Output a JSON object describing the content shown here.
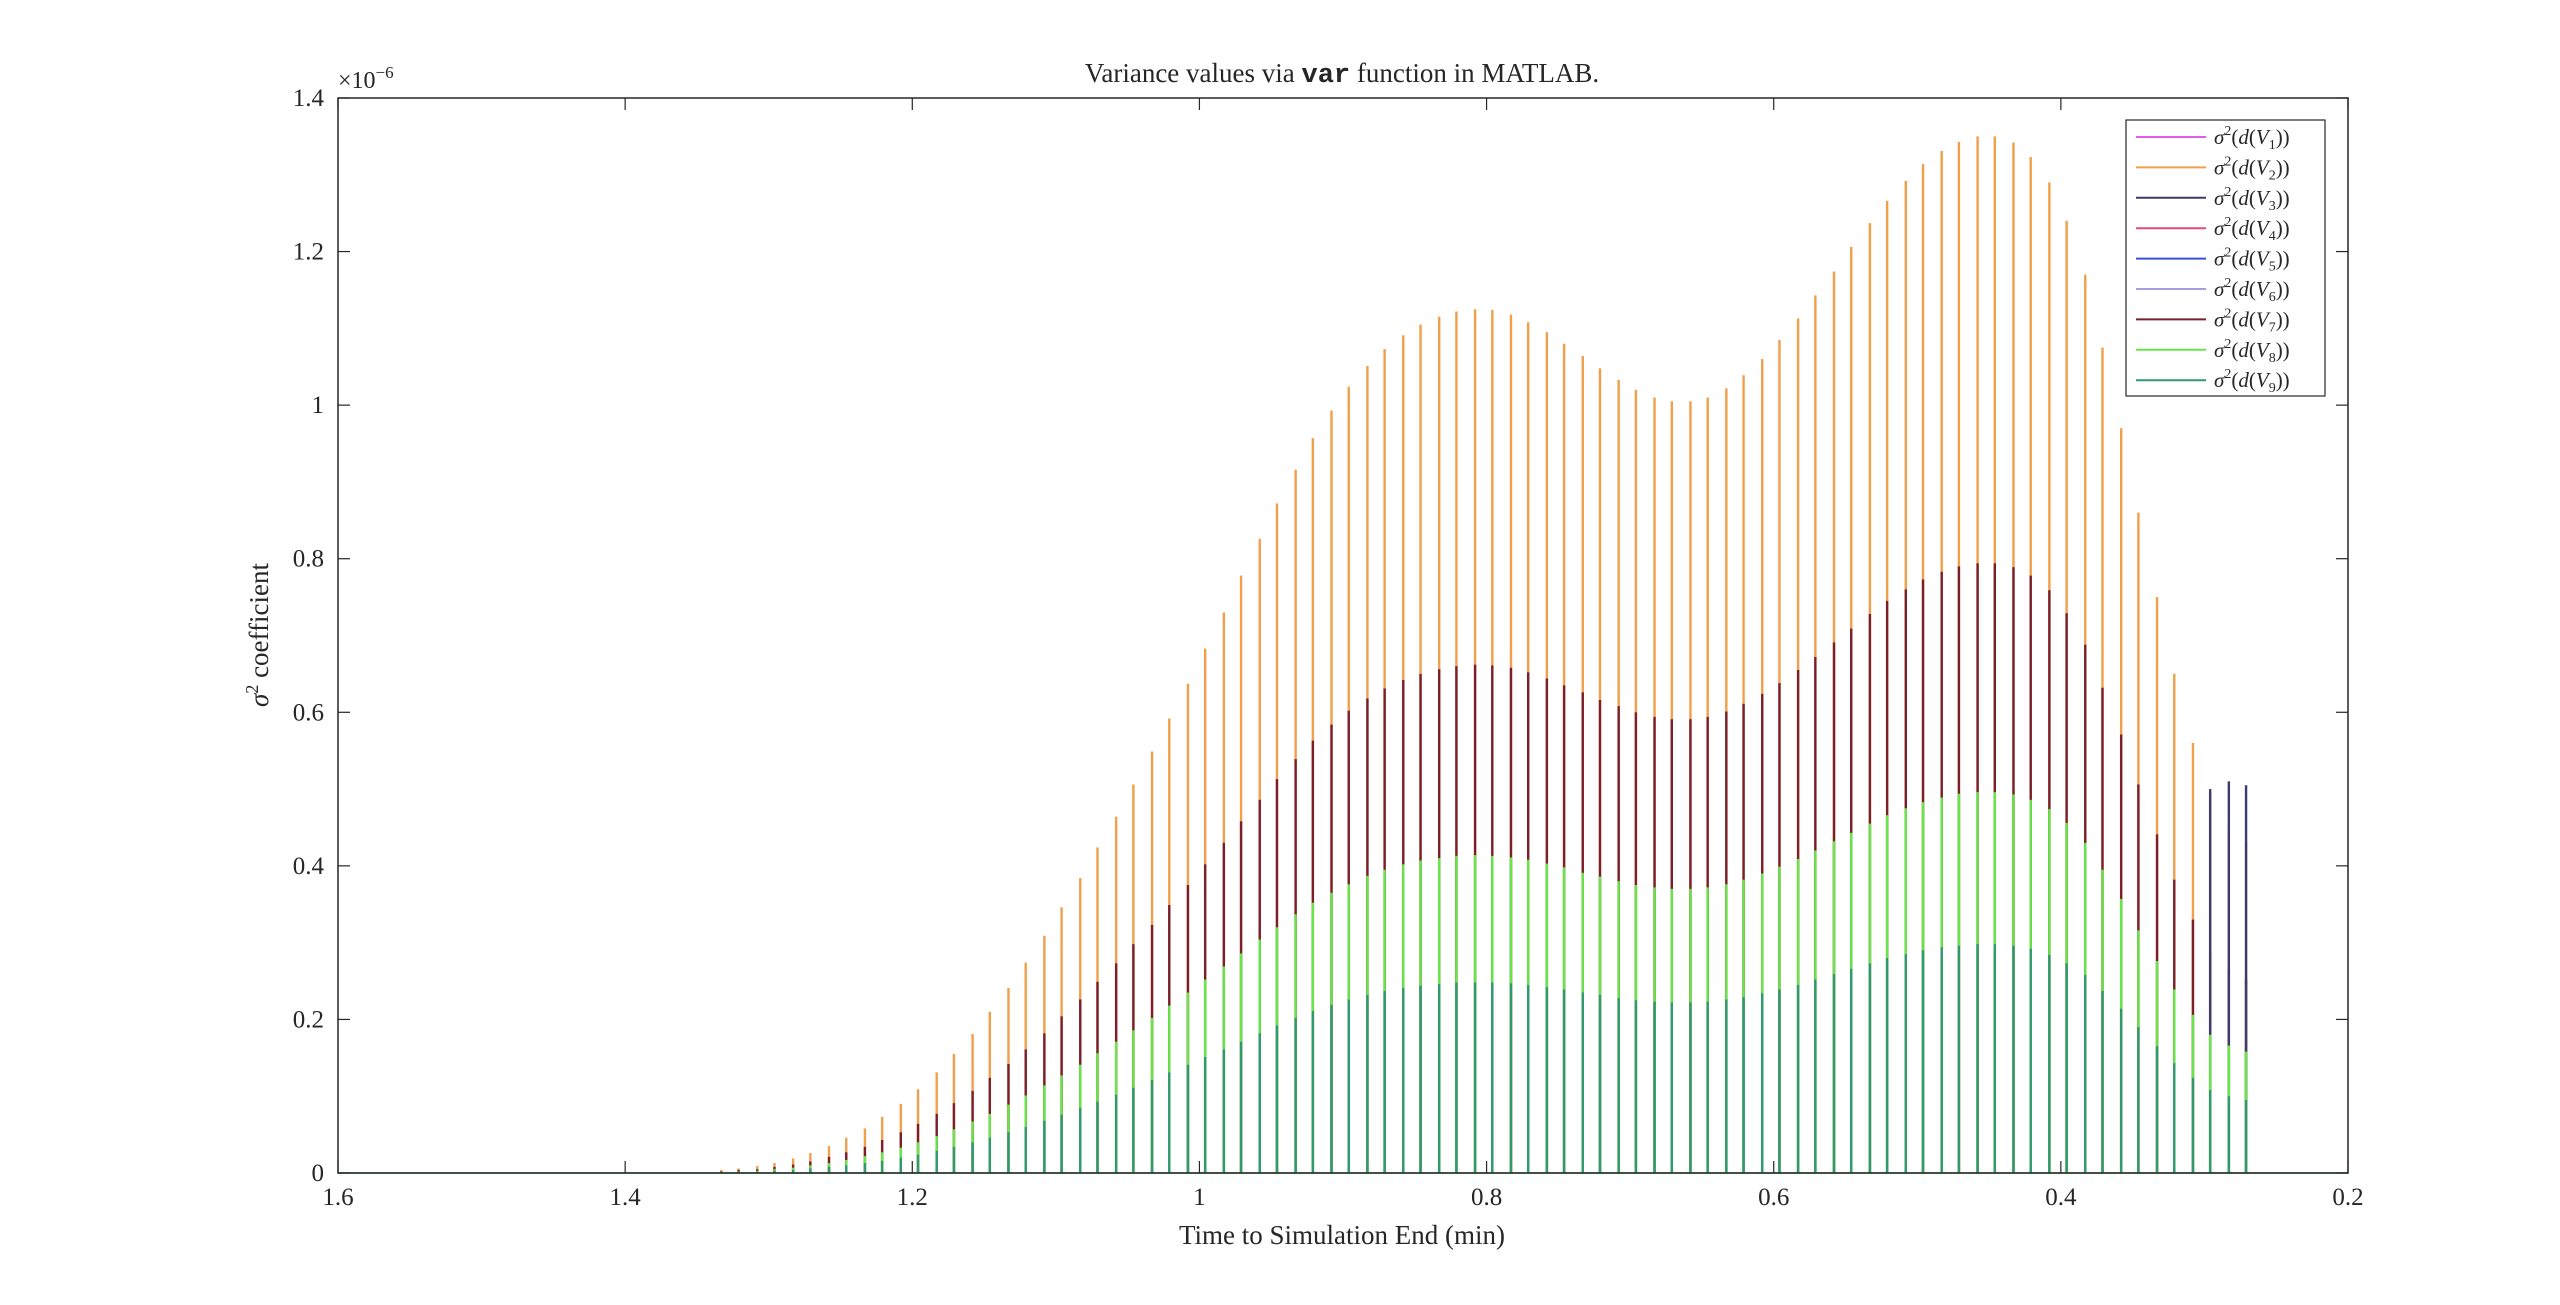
{
  "chart_data": {
    "type": "bar",
    "title": {
      "prefix": "Variance values via ",
      "code": "var",
      "suffix": " function in MATLAB."
    },
    "xlabel": "Time to Simulation End (min)",
    "ylabel": {
      "symbol": "σ",
      "superscript": "2",
      "text": " coefficient"
    },
    "y_exponent": {
      "base": "×10",
      "power": "−6"
    },
    "xlim": [
      1.6,
      0.2
    ],
    "x_reversed": true,
    "ylim": [
      0,
      1.4
    ],
    "xticks": [
      1.6,
      1.4,
      1.2,
      1,
      0.8,
      0.6,
      0.4,
      0.2
    ],
    "xtick_labels": [
      "1.6",
      "1.4",
      "1.2",
      "1",
      "0.8",
      "0.6",
      "0.4",
      "0.2"
    ],
    "yticks": [
      0,
      0.2,
      0.4,
      0.6,
      0.8,
      1,
      1.2,
      1.4
    ],
    "ytick_labels": [
      "0",
      "0.2",
      "0.4",
      "0.6",
      "0.8",
      "1",
      "1.2",
      "1.4"
    ],
    "grid": false,
    "legend_position": "top-right",
    "x": [
      1.333,
      1.321,
      1.308,
      1.296,
      1.283,
      1.271,
      1.258,
      1.246,
      1.233,
      1.221,
      1.208,
      1.196,
      1.183,
      1.171,
      1.158,
      1.146,
      1.133,
      1.121,
      1.108,
      1.096,
      1.083,
      1.071,
      1.058,
      1.046,
      1.033,
      1.021,
      1.008,
      0.996,
      0.983,
      0.971,
      0.958,
      0.946,
      0.933,
      0.921,
      0.908,
      0.896,
      0.883,
      0.871,
      0.858,
      0.846,
      0.833,
      0.821,
      0.808,
      0.796,
      0.783,
      0.771,
      0.758,
      0.746,
      0.733,
      0.721,
      0.708,
      0.696,
      0.683,
      0.671,
      0.658,
      0.646,
      0.633,
      0.621,
      0.608,
      0.596,
      0.583,
      0.571,
      0.558,
      0.546,
      0.533,
      0.521,
      0.508,
      0.496,
      0.483,
      0.471,
      0.458,
      0.446,
      0.433,
      0.421,
      0.408,
      0.396,
      0.383,
      0.371,
      0.358,
      0.346,
      0.333,
      0.321,
      0.308,
      0.296,
      0.283,
      0.271
    ],
    "series": [
      {
        "name": "σ²(d(V₁))",
        "legend_sub": "1",
        "color": "#e65ce6",
        "values": [
          0,
          0,
          0,
          0,
          0,
          0,
          0,
          0,
          0,
          0,
          0,
          0,
          0,
          0,
          0,
          0,
          0,
          0,
          0,
          0,
          0,
          0,
          0,
          0,
          0,
          0,
          0,
          0,
          0,
          0,
          0,
          0,
          0,
          0,
          0,
          0,
          0,
          0,
          0,
          0,
          0,
          0,
          0,
          0,
          0,
          0,
          0,
          0,
          0,
          0,
          0,
          0,
          0,
          0,
          0,
          0,
          0,
          0,
          0,
          0,
          0,
          0,
          0,
          0,
          0,
          0,
          0,
          0,
          0,
          0,
          0,
          0,
          0,
          0,
          0,
          0,
          0,
          0,
          0,
          0,
          0,
          0,
          0,
          0,
          0,
          0
        ]
      },
      {
        "name": "σ²(d(V₂))",
        "legend_sub": "2",
        "color": "#f0a04b",
        "values": [
          0.004,
          0.006,
          0.009,
          0.013,
          0.019,
          0.026,
          0.035,
          0.046,
          0.058,
          0.073,
          0.09,
          0.109,
          0.131,
          0.155,
          0.181,
          0.21,
          0.241,
          0.274,
          0.309,
          0.346,
          0.384,
          0.424,
          0.464,
          0.506,
          0.549,
          0.592,
          0.637,
          0.683,
          0.73,
          0.778,
          0.826,
          0.872,
          0.916,
          0.957,
          0.993,
          1.024,
          1.051,
          1.073,
          1.091,
          1.105,
          1.115,
          1.122,
          1.125,
          1.124,
          1.118,
          1.108,
          1.095,
          1.08,
          1.064,
          1.048,
          1.033,
          1.02,
          1.01,
          1.005,
          1.005,
          1.01,
          1.022,
          1.039,
          1.06,
          1.085,
          1.113,
          1.143,
          1.174,
          1.206,
          1.237,
          1.266,
          1.292,
          1.314,
          1.331,
          1.343,
          1.35,
          1.35,
          1.342,
          1.323,
          1.29,
          1.24,
          1.17,
          1.075,
          0.97,
          0.86,
          0.75,
          0.65,
          0.56,
          0.49,
          0.45,
          0.43
        ]
      },
      {
        "name": "σ²(d(V₃))",
        "legend_sub": "3",
        "color": "#3b3b6e",
        "values": [
          0,
          0,
          0,
          0,
          0,
          0,
          0,
          0,
          0,
          0,
          0,
          0,
          0,
          0,
          0,
          0,
          0,
          0,
          0,
          0,
          0,
          0,
          0,
          0,
          0,
          0,
          0,
          0,
          0,
          0,
          0,
          0,
          0,
          0,
          0,
          0,
          0,
          0,
          0,
          0,
          0,
          0,
          0,
          0,
          0,
          0,
          0,
          0,
          0,
          0,
          0,
          0,
          0,
          0,
          0,
          0,
          0,
          0,
          0,
          0,
          0,
          0,
          0,
          0,
          0,
          0,
          0,
          0,
          0,
          0,
          0,
          0,
          0,
          0,
          0,
          0,
          0,
          0,
          0,
          0,
          0,
          0,
          0,
          0.5,
          0.51,
          0.505
        ]
      },
      {
        "name": "σ²(d(V₄))",
        "legend_sub": "4",
        "color": "#e6487a",
        "values": [
          0,
          0,
          0,
          0,
          0,
          0,
          0,
          0,
          0,
          0,
          0,
          0,
          0,
          0,
          0,
          0,
          0,
          0,
          0,
          0,
          0,
          0,
          0,
          0,
          0,
          0,
          0,
          0,
          0,
          0,
          0,
          0,
          0,
          0,
          0,
          0,
          0,
          0,
          0,
          0,
          0,
          0,
          0,
          0,
          0,
          0,
          0,
          0,
          0,
          0,
          0,
          0,
          0,
          0,
          0,
          0,
          0,
          0,
          0,
          0,
          0,
          0,
          0,
          0,
          0,
          0,
          0,
          0,
          0,
          0,
          0,
          0,
          0,
          0,
          0,
          0,
          0,
          0,
          0,
          0,
          0,
          0,
          0,
          0,
          0,
          0
        ]
      },
      {
        "name": "σ²(d(V₅))",
        "legend_sub": "5",
        "color": "#3a4ee0",
        "values": [
          0,
          0,
          0,
          0,
          0,
          0,
          0,
          0,
          0,
          0,
          0,
          0,
          0,
          0,
          0,
          0,
          0,
          0,
          0,
          0,
          0,
          0,
          0,
          0,
          0,
          0,
          0,
          0,
          0,
          0,
          0,
          0,
          0,
          0,
          0,
          0,
          0,
          0,
          0,
          0,
          0,
          0,
          0,
          0,
          0,
          0,
          0,
          0,
          0,
          0,
          0,
          0,
          0,
          0,
          0,
          0,
          0,
          0,
          0,
          0,
          0,
          0,
          0,
          0,
          0,
          0,
          0,
          0,
          0,
          0,
          0,
          0,
          0,
          0,
          0,
          0,
          0,
          0,
          0,
          0,
          0,
          0,
          0,
          0,
          0,
          0
        ]
      },
      {
        "name": "σ²(d(V₆))",
        "legend_sub": "6",
        "color": "#a99de0",
        "values": [
          0,
          0,
          0,
          0,
          0,
          0,
          0,
          0,
          0,
          0,
          0,
          0,
          0,
          0,
          0,
          0,
          0,
          0,
          0,
          0,
          0,
          0,
          0,
          0,
          0,
          0,
          0,
          0,
          0,
          0,
          0,
          0,
          0,
          0,
          0,
          0,
          0,
          0,
          0,
          0,
          0,
          0,
          0,
          0,
          0,
          0,
          0,
          0,
          0,
          0,
          0,
          0,
          0,
          0,
          0,
          0,
          0,
          0,
          0,
          0,
          0,
          0,
          0,
          0,
          0,
          0,
          0,
          0,
          0,
          0,
          0,
          0,
          0,
          0,
          0,
          0,
          0,
          0,
          0,
          0,
          0,
          0,
          0,
          0,
          0,
          0
        ]
      },
      {
        "name": "σ²(d(V₇))",
        "legend_sub": "7",
        "color": "#7a1f2b",
        "values": [
          0.002,
          0.004,
          0.005,
          0.008,
          0.011,
          0.015,
          0.021,
          0.027,
          0.034,
          0.043,
          0.053,
          0.064,
          0.077,
          0.091,
          0.107,
          0.124,
          0.142,
          0.161,
          0.182,
          0.204,
          0.226,
          0.249,
          0.273,
          0.298,
          0.323,
          0.349,
          0.375,
          0.402,
          0.43,
          0.458,
          0.486,
          0.513,
          0.539,
          0.563,
          0.584,
          0.602,
          0.618,
          0.631,
          0.642,
          0.65,
          0.656,
          0.66,
          0.662,
          0.661,
          0.658,
          0.652,
          0.644,
          0.635,
          0.626,
          0.616,
          0.608,
          0.6,
          0.594,
          0.591,
          0.591,
          0.594,
          0.601,
          0.611,
          0.624,
          0.638,
          0.655,
          0.672,
          0.691,
          0.709,
          0.728,
          0.745,
          0.76,
          0.773,
          0.783,
          0.79,
          0.794,
          0.794,
          0.789,
          0.778,
          0.759,
          0.729,
          0.688,
          0.632,
          0.571,
          0.506,
          0.441,
          0.382,
          0.33,
          0.288,
          0.265,
          0.253
        ]
      },
      {
        "name": "σ²(d(V₈))",
        "legend_sub": "8",
        "color": "#66e64a",
        "values": [
          0.001,
          0.002,
          0.003,
          0.005,
          0.007,
          0.01,
          0.013,
          0.017,
          0.022,
          0.027,
          0.033,
          0.04,
          0.048,
          0.057,
          0.067,
          0.077,
          0.089,
          0.101,
          0.114,
          0.127,
          0.141,
          0.156,
          0.171,
          0.186,
          0.202,
          0.218,
          0.235,
          0.252,
          0.269,
          0.286,
          0.304,
          0.32,
          0.337,
          0.352,
          0.365,
          0.376,
          0.387,
          0.395,
          0.402,
          0.407,
          0.41,
          0.413,
          0.414,
          0.413,
          0.411,
          0.408,
          0.403,
          0.398,
          0.391,
          0.386,
          0.38,
          0.375,
          0.372,
          0.37,
          0.37,
          0.372,
          0.376,
          0.382,
          0.39,
          0.399,
          0.409,
          0.42,
          0.432,
          0.443,
          0.455,
          0.466,
          0.475,
          0.483,
          0.489,
          0.494,
          0.496,
          0.496,
          0.493,
          0.486,
          0.474,
          0.456,
          0.43,
          0.395,
          0.357,
          0.316,
          0.276,
          0.239,
          0.206,
          0.18,
          0.166,
          0.158
        ]
      },
      {
        "name": "σ²(d(V₉))",
        "legend_sub": "9",
        "color": "#2e9a6e",
        "values": [
          0.001,
          0.001,
          0.002,
          0.003,
          0.004,
          0.006,
          0.008,
          0.01,
          0.013,
          0.016,
          0.02,
          0.024,
          0.029,
          0.034,
          0.04,
          0.046,
          0.053,
          0.06,
          0.068,
          0.076,
          0.085,
          0.093,
          0.102,
          0.111,
          0.121,
          0.131,
          0.141,
          0.151,
          0.161,
          0.171,
          0.182,
          0.192,
          0.202,
          0.211,
          0.219,
          0.226,
          0.232,
          0.237,
          0.241,
          0.244,
          0.246,
          0.248,
          0.248,
          0.248,
          0.247,
          0.245,
          0.242,
          0.239,
          0.235,
          0.232,
          0.228,
          0.225,
          0.223,
          0.222,
          0.222,
          0.223,
          0.226,
          0.229,
          0.234,
          0.239,
          0.245,
          0.252,
          0.259,
          0.266,
          0.273,
          0.28,
          0.285,
          0.29,
          0.294,
          0.296,
          0.298,
          0.298,
          0.296,
          0.292,
          0.284,
          0.273,
          0.258,
          0.237,
          0.214,
          0.19,
          0.165,
          0.143,
          0.124,
          0.108,
          0.1,
          0.095
        ]
      }
    ]
  }
}
